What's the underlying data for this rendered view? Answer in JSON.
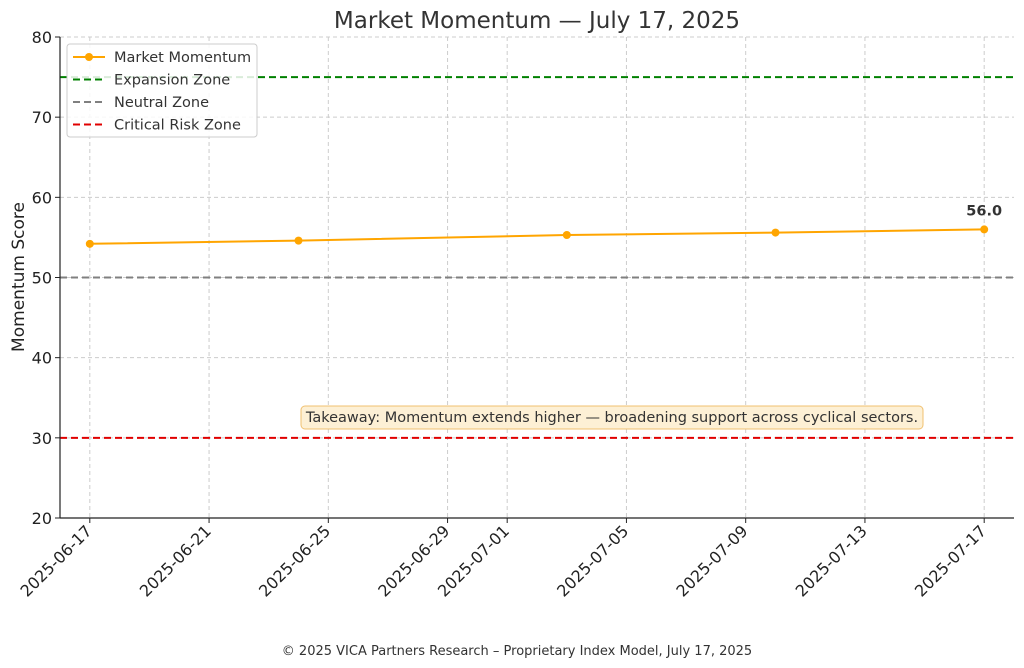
{
  "chart_data": {
    "type": "line",
    "title": "Market Momentum — July 17, 2025",
    "xlabel": "",
    "ylabel": "Momentum Score",
    "ylim": [
      20,
      80
    ],
    "yticks": [
      20,
      30,
      40,
      50,
      60,
      70,
      80
    ],
    "xlim": [
      "2025-06-16",
      "2025-07-18"
    ],
    "xticks": [
      "2025-06-17",
      "2025-06-21",
      "2025-06-25",
      "2025-06-29",
      "2025-07-01",
      "2025-07-05",
      "2025-07-09",
      "2025-07-13",
      "2025-07-17"
    ],
    "grid": true,
    "legend_position": "top-left",
    "series": [
      {
        "name": "Market Momentum",
        "color": "#FFA500",
        "x": [
          "2025-06-17",
          "2025-06-24",
          "2025-07-03",
          "2025-07-10",
          "2025-07-17"
        ],
        "y": [
          54.2,
          54.6,
          55.3,
          55.6,
          56.0
        ]
      }
    ],
    "reference_lines": [
      {
        "name": "Expansion Zone",
        "y": 75,
        "color": "#008000"
      },
      {
        "name": "Neutral Zone",
        "y": 50,
        "color": "#808080"
      },
      {
        "name": "Critical Risk Zone",
        "y": 30,
        "color": "#E00000"
      }
    ],
    "value_label": "56.0",
    "annotation": "Takeaway: Momentum extends higher — broadening support across cyclical sectors."
  },
  "footer": "© 2025 VICA Partners Research – Proprietary Index Model, July 17, 2025"
}
